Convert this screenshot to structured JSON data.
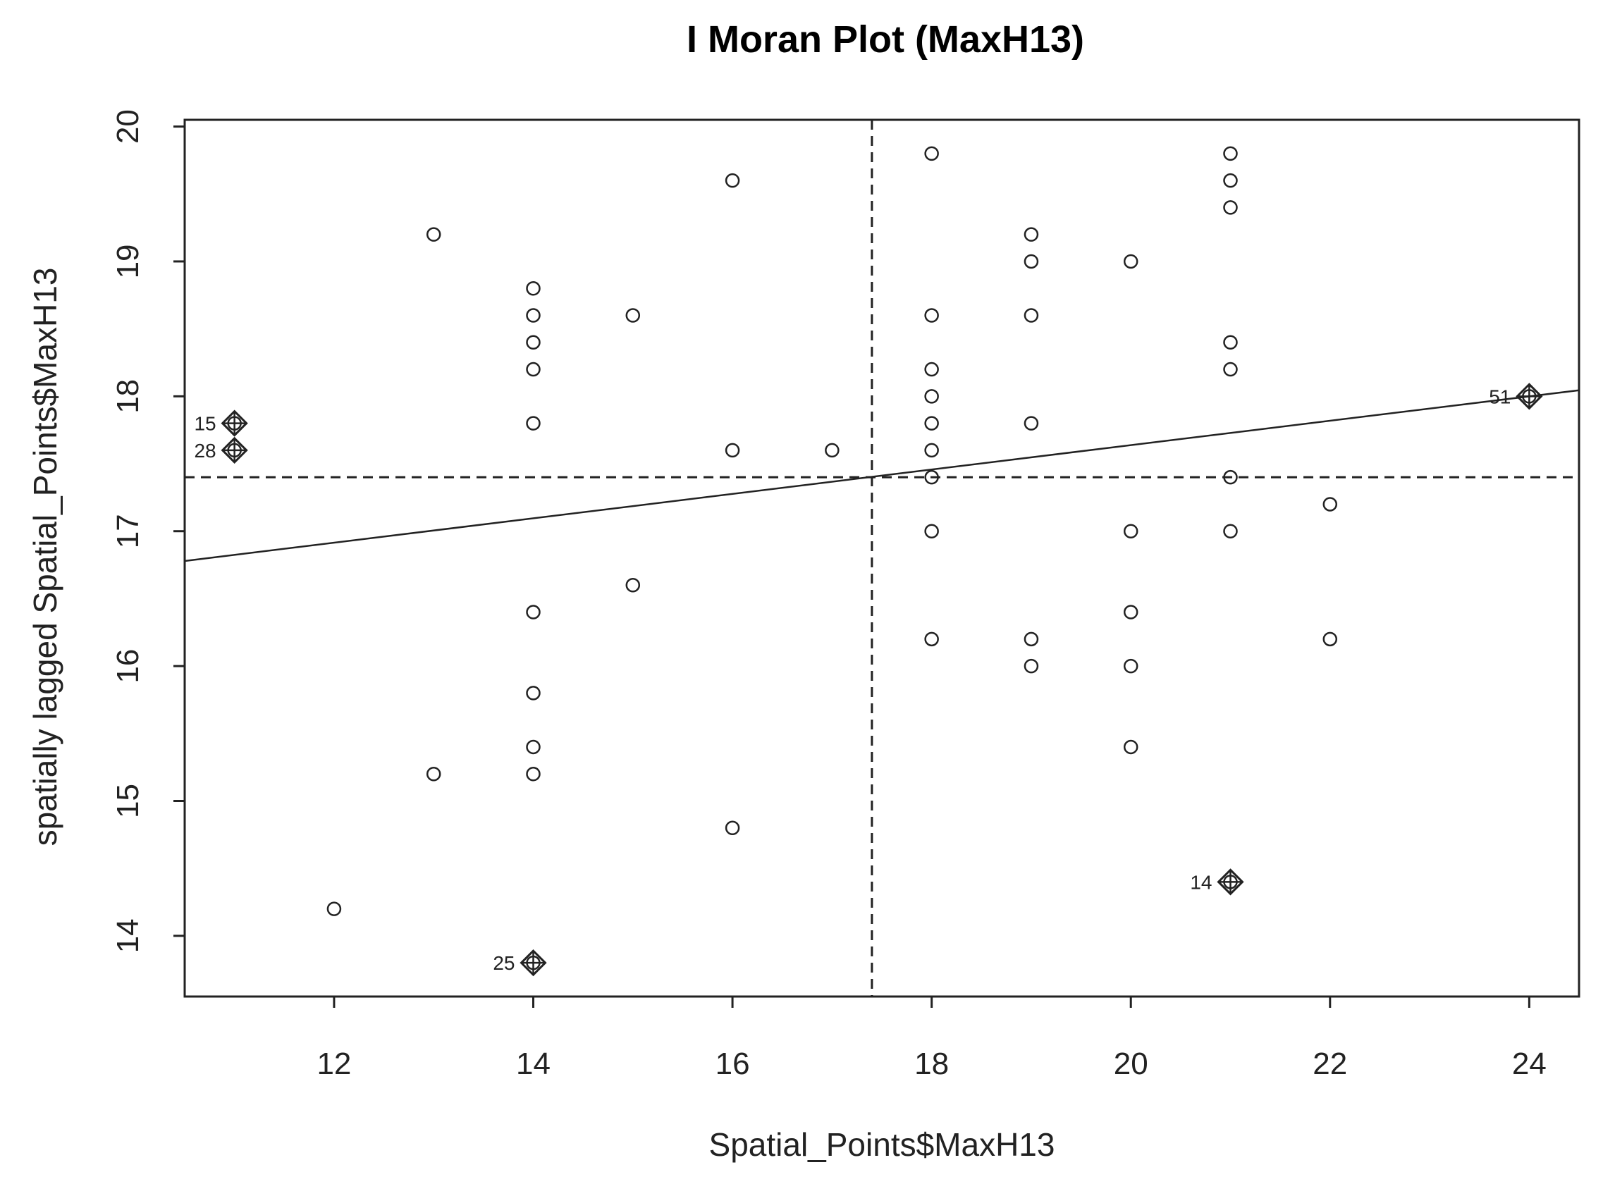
{
  "chart_data": {
    "type": "scatter",
    "title": "I Moran Plot (MaxH13)",
    "xlabel": "Spatial_Points$MaxH13",
    "ylabel": "spatially lagged Spatial_Points$MaxH13",
    "xlim": [
      10.5,
      24.5
    ],
    "ylim": [
      13.55,
      20.05
    ],
    "xticks": [
      12,
      14,
      16,
      18,
      20,
      22,
      24
    ],
    "yticks": [
      14,
      15,
      16,
      17,
      18,
      19,
      20
    ],
    "mean_x": 17.4,
    "mean_y": 17.4,
    "regression": {
      "intercept": 15.83,
      "slope": 0.0904
    },
    "points": [
      {
        "x": 12,
        "y": 14.2
      },
      {
        "x": 13,
        "y": 19.2
      },
      {
        "x": 13,
        "y": 15.2
      },
      {
        "x": 14,
        "y": 18.8
      },
      {
        "x": 14,
        "y": 18.6
      },
      {
        "x": 14,
        "y": 18.4
      },
      {
        "x": 14,
        "y": 18.2
      },
      {
        "x": 14,
        "y": 17.8
      },
      {
        "x": 14,
        "y": 16.4
      },
      {
        "x": 14,
        "y": 15.8
      },
      {
        "x": 14,
        "y": 15.4
      },
      {
        "x": 14,
        "y": 15.2
      },
      {
        "x": 15,
        "y": 18.6
      },
      {
        "x": 15,
        "y": 16.6
      },
      {
        "x": 16,
        "y": 19.6
      },
      {
        "x": 16,
        "y": 17.6
      },
      {
        "x": 16,
        "y": 14.8
      },
      {
        "x": 17,
        "y": 17.6
      },
      {
        "x": 18,
        "y": 19.8
      },
      {
        "x": 18,
        "y": 18.6
      },
      {
        "x": 18,
        "y": 18.2
      },
      {
        "x": 18,
        "y": 18.0
      },
      {
        "x": 18,
        "y": 17.8
      },
      {
        "x": 18,
        "y": 17.6
      },
      {
        "x": 18,
        "y": 17.4
      },
      {
        "x": 18,
        "y": 17.0
      },
      {
        "x": 18,
        "y": 16.2
      },
      {
        "x": 19,
        "y": 19.2
      },
      {
        "x": 19,
        "y": 19.0
      },
      {
        "x": 19,
        "y": 18.6
      },
      {
        "x": 19,
        "y": 17.8
      },
      {
        "x": 19,
        "y": 16.2
      },
      {
        "x": 19,
        "y": 16.0
      },
      {
        "x": 20,
        "y": 19.0
      },
      {
        "x": 20,
        "y": 17.0
      },
      {
        "x": 20,
        "y": 16.4
      },
      {
        "x": 20,
        "y": 16.0
      },
      {
        "x": 20,
        "y": 15.4
      },
      {
        "x": 21,
        "y": 19.8
      },
      {
        "x": 21,
        "y": 19.6
      },
      {
        "x": 21,
        "y": 19.4
      },
      {
        "x": 21,
        "y": 18.4
      },
      {
        "x": 21,
        "y": 18.2
      },
      {
        "x": 21,
        "y": 17.4
      },
      {
        "x": 21,
        "y": 17.0
      },
      {
        "x": 22,
        "y": 17.2
      },
      {
        "x": 22,
        "y": 16.2
      }
    ],
    "influential_points": [
      {
        "label": "15",
        "x": 11,
        "y": 17.8
      },
      {
        "label": "28",
        "x": 11,
        "y": 17.6
      },
      {
        "label": "25",
        "x": 14,
        "y": 13.8
      },
      {
        "label": "14",
        "x": 21,
        "y": 14.4
      },
      {
        "label": "51",
        "x": 24,
        "y": 18.0
      }
    ]
  }
}
